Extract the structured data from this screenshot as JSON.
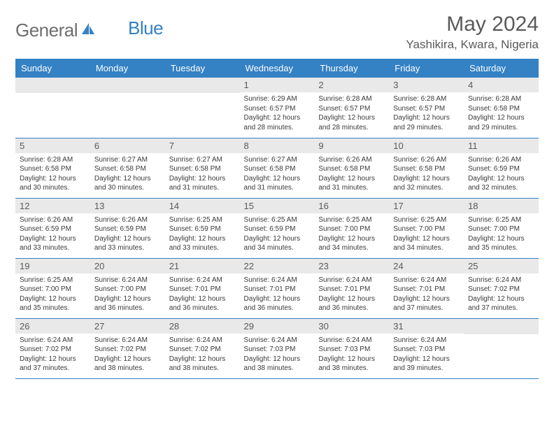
{
  "logo": {
    "text1": "General",
    "text2": "Blue"
  },
  "title": "May 2024",
  "location": "Yashikira, Kwara, Nigeria",
  "colors": {
    "header_bg": "#3481c4",
    "header_text": "#ffffff",
    "daynum_bg": "#e9e9e9",
    "text": "#3a3a3a",
    "title": "#5a5a5a",
    "row_border": "#3481c4"
  },
  "day_headers": [
    "Sunday",
    "Monday",
    "Tuesday",
    "Wednesday",
    "Thursday",
    "Friday",
    "Saturday"
  ],
  "weeks": [
    [
      {
        "n": "",
        "sr": "",
        "ss": "",
        "dl": ""
      },
      {
        "n": "",
        "sr": "",
        "ss": "",
        "dl": ""
      },
      {
        "n": "",
        "sr": "",
        "ss": "",
        "dl": ""
      },
      {
        "n": "1",
        "sr": "Sunrise: 6:29 AM",
        "ss": "Sunset: 6:57 PM",
        "dl": "Daylight: 12 hours and 28 minutes."
      },
      {
        "n": "2",
        "sr": "Sunrise: 6:28 AM",
        "ss": "Sunset: 6:57 PM",
        "dl": "Daylight: 12 hours and 28 minutes."
      },
      {
        "n": "3",
        "sr": "Sunrise: 6:28 AM",
        "ss": "Sunset: 6:57 PM",
        "dl": "Daylight: 12 hours and 29 minutes."
      },
      {
        "n": "4",
        "sr": "Sunrise: 6:28 AM",
        "ss": "Sunset: 6:58 PM",
        "dl": "Daylight: 12 hours and 29 minutes."
      }
    ],
    [
      {
        "n": "5",
        "sr": "Sunrise: 6:28 AM",
        "ss": "Sunset: 6:58 PM",
        "dl": "Daylight: 12 hours and 30 minutes."
      },
      {
        "n": "6",
        "sr": "Sunrise: 6:27 AM",
        "ss": "Sunset: 6:58 PM",
        "dl": "Daylight: 12 hours and 30 minutes."
      },
      {
        "n": "7",
        "sr": "Sunrise: 6:27 AM",
        "ss": "Sunset: 6:58 PM",
        "dl": "Daylight: 12 hours and 31 minutes."
      },
      {
        "n": "8",
        "sr": "Sunrise: 6:27 AM",
        "ss": "Sunset: 6:58 PM",
        "dl": "Daylight: 12 hours and 31 minutes."
      },
      {
        "n": "9",
        "sr": "Sunrise: 6:26 AM",
        "ss": "Sunset: 6:58 PM",
        "dl": "Daylight: 12 hours and 31 minutes."
      },
      {
        "n": "10",
        "sr": "Sunrise: 6:26 AM",
        "ss": "Sunset: 6:58 PM",
        "dl": "Daylight: 12 hours and 32 minutes."
      },
      {
        "n": "11",
        "sr": "Sunrise: 6:26 AM",
        "ss": "Sunset: 6:59 PM",
        "dl": "Daylight: 12 hours and 32 minutes."
      }
    ],
    [
      {
        "n": "12",
        "sr": "Sunrise: 6:26 AM",
        "ss": "Sunset: 6:59 PM",
        "dl": "Daylight: 12 hours and 33 minutes."
      },
      {
        "n": "13",
        "sr": "Sunrise: 6:26 AM",
        "ss": "Sunset: 6:59 PM",
        "dl": "Daylight: 12 hours and 33 minutes."
      },
      {
        "n": "14",
        "sr": "Sunrise: 6:25 AM",
        "ss": "Sunset: 6:59 PM",
        "dl": "Daylight: 12 hours and 33 minutes."
      },
      {
        "n": "15",
        "sr": "Sunrise: 6:25 AM",
        "ss": "Sunset: 6:59 PM",
        "dl": "Daylight: 12 hours and 34 minutes."
      },
      {
        "n": "16",
        "sr": "Sunrise: 6:25 AM",
        "ss": "Sunset: 7:00 PM",
        "dl": "Daylight: 12 hours and 34 minutes."
      },
      {
        "n": "17",
        "sr": "Sunrise: 6:25 AM",
        "ss": "Sunset: 7:00 PM",
        "dl": "Daylight: 12 hours and 34 minutes."
      },
      {
        "n": "18",
        "sr": "Sunrise: 6:25 AM",
        "ss": "Sunset: 7:00 PM",
        "dl": "Daylight: 12 hours and 35 minutes."
      }
    ],
    [
      {
        "n": "19",
        "sr": "Sunrise: 6:25 AM",
        "ss": "Sunset: 7:00 PM",
        "dl": "Daylight: 12 hours and 35 minutes."
      },
      {
        "n": "20",
        "sr": "Sunrise: 6:24 AM",
        "ss": "Sunset: 7:00 PM",
        "dl": "Daylight: 12 hours and 36 minutes."
      },
      {
        "n": "21",
        "sr": "Sunrise: 6:24 AM",
        "ss": "Sunset: 7:01 PM",
        "dl": "Daylight: 12 hours and 36 minutes."
      },
      {
        "n": "22",
        "sr": "Sunrise: 6:24 AM",
        "ss": "Sunset: 7:01 PM",
        "dl": "Daylight: 12 hours and 36 minutes."
      },
      {
        "n": "23",
        "sr": "Sunrise: 6:24 AM",
        "ss": "Sunset: 7:01 PM",
        "dl": "Daylight: 12 hours and 36 minutes."
      },
      {
        "n": "24",
        "sr": "Sunrise: 6:24 AM",
        "ss": "Sunset: 7:01 PM",
        "dl": "Daylight: 12 hours and 37 minutes."
      },
      {
        "n": "25",
        "sr": "Sunrise: 6:24 AM",
        "ss": "Sunset: 7:02 PM",
        "dl": "Daylight: 12 hours and 37 minutes."
      }
    ],
    [
      {
        "n": "26",
        "sr": "Sunrise: 6:24 AM",
        "ss": "Sunset: 7:02 PM",
        "dl": "Daylight: 12 hours and 37 minutes."
      },
      {
        "n": "27",
        "sr": "Sunrise: 6:24 AM",
        "ss": "Sunset: 7:02 PM",
        "dl": "Daylight: 12 hours and 38 minutes."
      },
      {
        "n": "28",
        "sr": "Sunrise: 6:24 AM",
        "ss": "Sunset: 7:02 PM",
        "dl": "Daylight: 12 hours and 38 minutes."
      },
      {
        "n": "29",
        "sr": "Sunrise: 6:24 AM",
        "ss": "Sunset: 7:03 PM",
        "dl": "Daylight: 12 hours and 38 minutes."
      },
      {
        "n": "30",
        "sr": "Sunrise: 6:24 AM",
        "ss": "Sunset: 7:03 PM",
        "dl": "Daylight: 12 hours and 38 minutes."
      },
      {
        "n": "31",
        "sr": "Sunrise: 6:24 AM",
        "ss": "Sunset: 7:03 PM",
        "dl": "Daylight: 12 hours and 39 minutes."
      },
      {
        "n": "",
        "sr": "",
        "ss": "",
        "dl": ""
      }
    ]
  ]
}
